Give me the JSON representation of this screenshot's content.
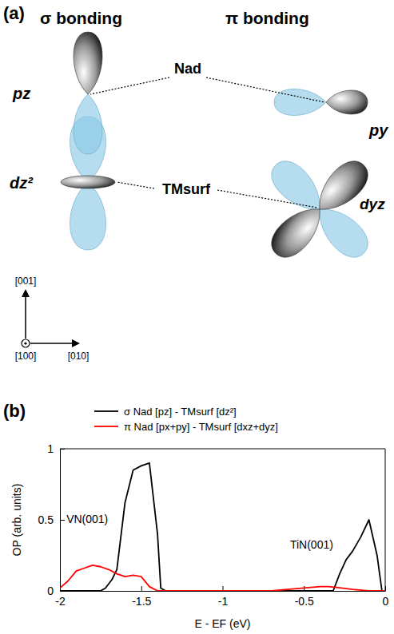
{
  "diagram": {
    "panel_label": "(a)",
    "sigma_title": "σ bonding",
    "pi_title": "π bonding",
    "adsorbate": "Nad",
    "surface": "TMsurf",
    "sigma_orbitals": [
      "pz",
      "dz²"
    ],
    "pi_orbitals": [
      "py",
      "dyz"
    ],
    "directions": [
      "[001]",
      "[100]",
      "[010]"
    ]
  },
  "chart_data": {
    "type": "line",
    "panel_label": "(b)",
    "xlabel": "E - EF (eV)",
    "ylabel": "OP (arb. units)",
    "xlim": [
      -2,
      0
    ],
    "xticks": [
      -2,
      -1.5,
      -1,
      -0.5,
      0
    ],
    "ylim": [
      0,
      1
    ],
    "yticks": [
      0,
      0.5,
      1
    ],
    "legend": "top",
    "annotations": [
      "VN(001)",
      "TiN(001)"
    ],
    "series": [
      {
        "name": "σ Nad [pz] - TMsurf [dz²]",
        "color": "#000000",
        "x": [
          -2,
          -1.75,
          -1.72,
          -1.68,
          -1.65,
          -1.6,
          -1.55,
          -1.5,
          -1.45,
          -1.4,
          -1.38,
          -1.35,
          -0.32,
          -0.28,
          -0.24,
          -0.2,
          -0.15,
          -0.1,
          -0.05,
          -0.02,
          0
        ],
        "values": [
          0,
          0,
          0.02,
          0.08,
          0.15,
          0.62,
          0.85,
          0.88,
          0.9,
          0.4,
          0.02,
          0,
          0,
          0.12,
          0.22,
          0.28,
          0.38,
          0.5,
          0.25,
          0,
          0
        ]
      },
      {
        "name": "π Nad [px+py] - TMsurf [dxz+dyz]",
        "color": "#ff0000",
        "x": [
          -2,
          -1.95,
          -1.9,
          -1.85,
          -1.8,
          -1.75,
          -1.7,
          -1.65,
          -1.6,
          -1.55,
          -1.5,
          -1.45,
          -1.4,
          -0.7,
          -0.6,
          -0.5,
          -0.4,
          -0.35,
          -0.3,
          -0.2,
          -0.1,
          0
        ],
        "values": [
          0.02,
          0.07,
          0.14,
          0.16,
          0.18,
          0.17,
          0.15,
          0.12,
          0.1,
          0.11,
          0.1,
          0.03,
          0,
          0,
          0.01,
          0.02,
          0.03,
          0.03,
          0.025,
          0.01,
          0,
          0
        ]
      }
    ]
  }
}
